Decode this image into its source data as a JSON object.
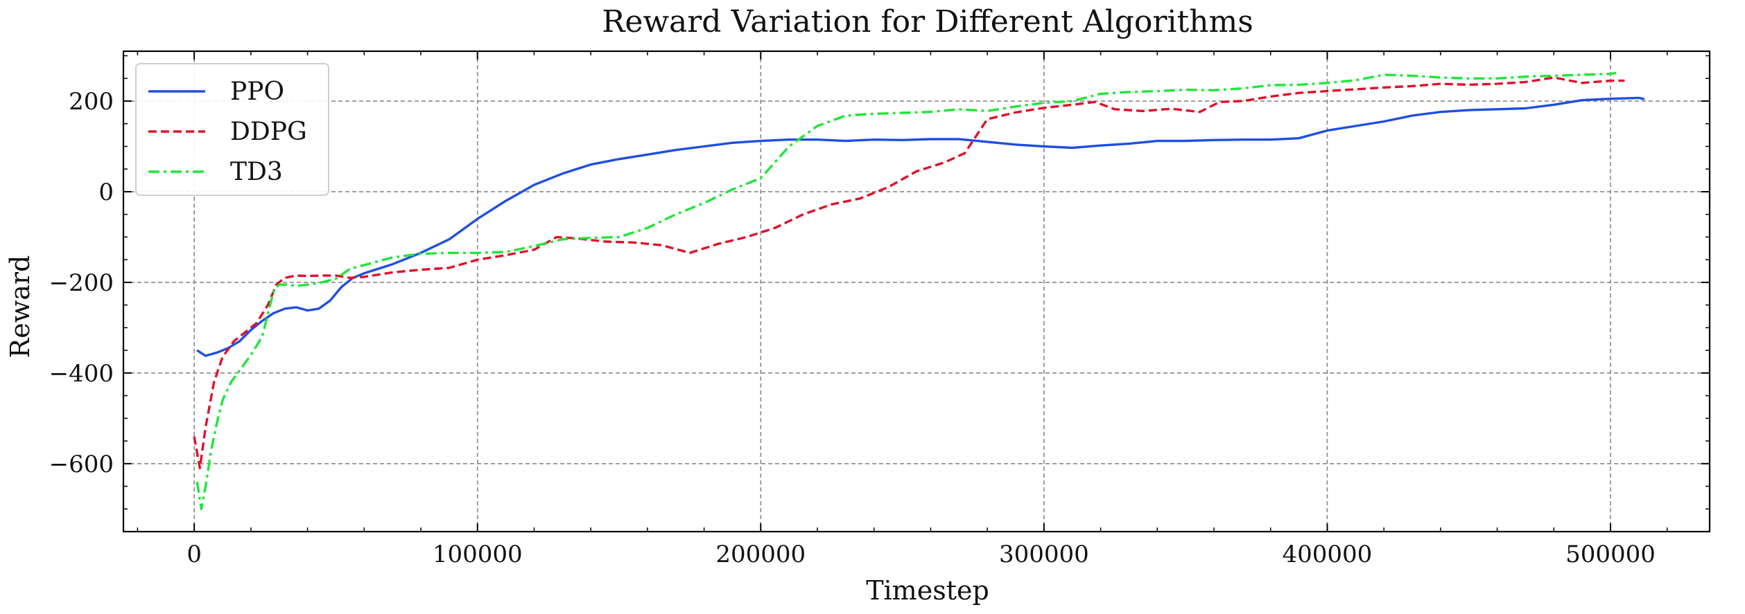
{
  "chart_data": {
    "type": "line",
    "title": "Reward Variation for Different Algorithms",
    "xlabel": "Timestep",
    "ylabel": "Reward",
    "xlim": [
      -25000,
      535000
    ],
    "ylim": [
      -750,
      310
    ],
    "xticks": [
      0,
      100000,
      200000,
      300000,
      400000,
      500000
    ],
    "xtick_labels": [
      "0",
      "100000",
      "200000",
      "300000",
      "400000",
      "500000"
    ],
    "yticks": [
      -600,
      -400,
      -200,
      0,
      200
    ],
    "ytick_labels": [
      "−600",
      "−400",
      "−200",
      "0",
      "200"
    ],
    "grid": true,
    "legend_position": "top-left",
    "series": [
      {
        "name": "PPO",
        "color": "#1f4fe0",
        "dash": "solid",
        "x": [
          1000,
          4000,
          8000,
          12000,
          16000,
          20000,
          24000,
          28000,
          32000,
          36000,
          40000,
          44000,
          48000,
          52000,
          56000,
          60000,
          70000,
          80000,
          90000,
          100000,
          110000,
          120000,
          130000,
          140000,
          150000,
          160000,
          170000,
          180000,
          190000,
          200000,
          210000,
          220000,
          230000,
          240000,
          250000,
          260000,
          270000,
          280000,
          290000,
          300000,
          310000,
          320000,
          330000,
          340000,
          350000,
          360000,
          370000,
          380000,
          390000,
          400000,
          410000,
          420000,
          430000,
          440000,
          450000,
          460000,
          470000,
          480000,
          490000,
          500000,
          510000,
          512000
        ],
        "y": [
          -350,
          -362,
          -355,
          -345,
          -330,
          -305,
          -285,
          -268,
          -258,
          -255,
          -262,
          -258,
          -240,
          -210,
          -190,
          -180,
          -160,
          -135,
          -105,
          -60,
          -20,
          15,
          40,
          60,
          72,
          82,
          92,
          100,
          108,
          112,
          115,
          115,
          112,
          115,
          114,
          116,
          116,
          110,
          104,
          100,
          97,
          102,
          106,
          112,
          112,
          114,
          115,
          115,
          118,
          135,
          145,
          155,
          168,
          176,
          180,
          182,
          184,
          192,
          202,
          205,
          207,
          204
        ]
      },
      {
        "name": "DDPG",
        "color": "#e0102a",
        "dash": "dashed",
        "x": [
          0,
          2000,
          4000,
          7000,
          10000,
          14000,
          18000,
          22000,
          26000,
          29000,
          32000,
          36000,
          40000,
          45000,
          50000,
          55000,
          60000,
          70000,
          80000,
          90000,
          100000,
          110000,
          120000,
          128000,
          135000,
          145000,
          155000,
          165000,
          175000,
          185000,
          195000,
          205000,
          215000,
          225000,
          235000,
          245000,
          255000,
          265000,
          272000,
          280000,
          290000,
          300000,
          310000,
          318000,
          325000,
          335000,
          345000,
          355000,
          362000,
          370000,
          380000,
          390000,
          400000,
          410000,
          420000,
          430000,
          440000,
          450000,
          460000,
          470000,
          480000,
          490000,
          500000,
          505000
        ],
        "y": [
          -540,
          -610,
          -520,
          -420,
          -365,
          -330,
          -310,
          -290,
          -250,
          -205,
          -190,
          -185,
          -186,
          -185,
          -185,
          -190,
          -188,
          -178,
          -172,
          -168,
          -150,
          -140,
          -128,
          -100,
          -103,
          -110,
          -112,
          -118,
          -135,
          -115,
          -100,
          -80,
          -50,
          -28,
          -15,
          10,
          45,
          65,
          85,
          160,
          175,
          185,
          192,
          198,
          182,
          178,
          183,
          176,
          198,
          200,
          210,
          218,
          222,
          226,
          230,
          233,
          238,
          236,
          238,
          242,
          252,
          240,
          245,
          245
        ]
      },
      {
        "name": "TD3",
        "color": "#1fe63a",
        "dash": "dashdot",
        "x": [
          1000,
          2500,
          4000,
          6000,
          8000,
          10000,
          13000,
          16000,
          20000,
          24000,
          28000,
          30000,
          33000,
          36000,
          40000,
          45000,
          50000,
          55000,
          60000,
          70000,
          80000,
          90000,
          100000,
          110000,
          120000,
          130000,
          140000,
          150000,
          160000,
          170000,
          180000,
          190000,
          200000,
          210000,
          220000,
          230000,
          240000,
          250000,
          260000,
          270000,
          280000,
          290000,
          300000,
          310000,
          320000,
          330000,
          340000,
          350000,
          360000,
          370000,
          380000,
          390000,
          400000,
          410000,
          420000,
          430000,
          440000,
          450000,
          460000,
          470000,
          480000,
          490000,
          500000,
          502000
        ],
        "y": [
          -640,
          -700,
          -650,
          -570,
          -510,
          -460,
          -420,
          -395,
          -360,
          -320,
          -220,
          -205,
          -205,
          -208,
          -205,
          -200,
          -192,
          -170,
          -162,
          -145,
          -137,
          -135,
          -135,
          -133,
          -120,
          -105,
          -102,
          -100,
          -80,
          -50,
          -25,
          5,
          30,
          100,
          145,
          168,
          172,
          174,
          176,
          182,
          178,
          188,
          196,
          200,
          216,
          220,
          222,
          225,
          224,
          228,
          235,
          236,
          240,
          246,
          258,
          256,
          252,
          250,
          250,
          254,
          256,
          258,
          260,
          262
        ]
      }
    ]
  }
}
